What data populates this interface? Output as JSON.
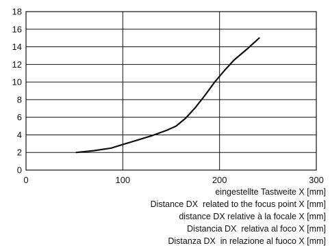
{
  "chart_data": {
    "type": "line",
    "xlim": [
      0,
      300
    ],
    "ylim": [
      0,
      18
    ],
    "x_ticks": [
      0,
      100,
      200,
      300
    ],
    "y_ticks": [
      0,
      2,
      4,
      6,
      8,
      10,
      12,
      14,
      16,
      18
    ],
    "x_grid_lines": [
      100,
      200
    ],
    "y_grid_lines": [
      2,
      4,
      6,
      8,
      10,
      12,
      14,
      16
    ],
    "series": [
      {
        "x": [
          52,
          70,
          88,
          100,
          115,
          130,
          145,
          155,
          165,
          175,
          185,
          195,
          205,
          215,
          228,
          241
        ],
        "y": [
          2.0,
          2.2,
          2.5,
          2.9,
          3.4,
          3.9,
          4.5,
          5.0,
          5.9,
          7.1,
          8.5,
          10.0,
          11.3,
          12.5,
          13.7,
          15.0
        ]
      }
    ],
    "xlabels": [
      "eingestellte Tastweite X [mm]",
      "Distance DX  related to the focus point X [mm]",
      "distance DX relative à la focale X [mm]",
      "Distancia DX  relativa al foco X [mm]",
      "Distanza DX  in relazione al fuoco X [mm]"
    ],
    "grid": true,
    "line_color": "#111111"
  }
}
